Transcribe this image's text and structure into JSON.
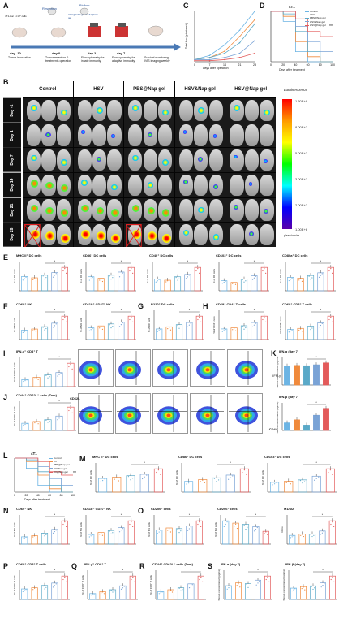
{
  "colors": {
    "control": "#6cb4e4",
    "hsv": "#f08a3c",
    "nap": "#5aa9c8",
    "hsvnap": "#e35b5b",
    "vsv": "#7aa3d6",
    "red": "#d62728",
    "blue": "#1f77b4",
    "orange": "#ff7f0e",
    "green": "#2ca02c",
    "purple": "#9467bd"
  },
  "panels": {
    "A": {
      "letter": "A",
      "steps": [
        {
          "day": "day -10",
          "desc": "Tumor inoculation"
        },
        {
          "day": "day 0",
          "desc": "Tumor resection & treatments operation"
        },
        {
          "day": "day 2",
          "desc": "Flow cytometry for innate immunity"
        },
        {
          "day": "day 7",
          "desc": "Flow cytometry for adaptive immunity"
        },
        {
          "day": "",
          "desc": "Survival monitoring IVIS imaging weekly"
        }
      ],
      "top_labels": [
        "Resection",
        "Biofum"
      ],
      "cells_label": "4T1-Luc 1×10⁶ cells",
      "treat_label": "HSV@NAP gel or VV@Nap gel"
    },
    "C": {
      "letter": "C",
      "ylabel": "Total flux (photons/s)",
      "xlabel": "Days after operation"
    },
    "D": {
      "letter": "D",
      "title": "4T1",
      "ylabel": "Survival rate (%)",
      "xlabel": "Days after treatment",
      "sig": "**"
    },
    "B": {
      "letter": "B",
      "columns": [
        "Control",
        "HSV",
        "PBS@Nap gel",
        "HSV&Nap gel",
        "HSV@Nap gel"
      ],
      "rows": [
        "Day -1",
        "Day 1",
        "Day 7",
        "Day 14",
        "Day 21",
        "Day 28"
      ],
      "cbar_title": "Luminescence",
      "cbar_ticks": [
        "1.30E+8",
        "8.00E+7",
        "5.00E+7",
        "3.00E+7",
        "2.00E+7",
        "1.00E+6"
      ],
      "cbar_unit": "p/sec/cm²/sr"
    },
    "E": {
      "letter": "E",
      "titles": [
        "MHC II⁺ DC cells",
        "CD86⁺ DC cells",
        "CD40⁺ DC cells",
        "CD103⁺ DC cells",
        "CD80a⁺ DC cells"
      ],
      "ylabels": [
        "% of DC cells",
        "% of DC cells",
        "% of DC cells",
        "% of DC cells",
        "% of DC cells"
      ]
    },
    "F": {
      "letter": "F",
      "titles": [
        "CD69⁺ NK",
        "CD11b⁺ CD27⁺ NK"
      ],
      "ylabels": [
        "% of NK cells",
        "% of NK cells"
      ]
    },
    "G": {
      "letter": "G",
      "titles": [
        "B220⁺ DC cells"
      ],
      "ylabels": [
        "% of DC cells"
      ]
    },
    "H": {
      "letter": "H",
      "titles": [
        "CD69⁺ CD4⁺ T cells",
        "CD69⁺ CD8⁺ T cells"
      ],
      "ylabels": [
        "% of CD4⁺ cells",
        "% of CD8⁺ cells"
      ]
    },
    "I": {
      "letter": "I",
      "titles": [
        "IFN-γ⁺ CD8⁺ T"
      ],
      "ylabels": [
        "% of CD8⁺ T cells"
      ],
      "flow_label": "IFN-γ"
    },
    "J": {
      "letter": "J",
      "titles": [
        "CD44⁺ CD62L⁻ cells (Tem)"
      ],
      "ylabels": [
        "% of CD8⁺ T cells"
      ],
      "flow_x": "CD44",
      "flow_y": "CD62L"
    },
    "K": {
      "letter": "K",
      "titles": [
        "IFN-α (day 7)",
        "IFN-β (day 7)"
      ],
      "ylabels": [
        "Serum concentration (pg/mL)",
        "Serum concentration (pg/mL)"
      ]
    },
    "L": {
      "letter": "L",
      "title": "4T1",
      "ylabel": "Survival rate (%)",
      "xlabel": "Days after treatment",
      "sig": "**"
    },
    "M": {
      "letter": "M",
      "titles": [
        "MHC II⁺ DC cells",
        "CD86⁺ DC cells",
        "CD103⁺ DC cells"
      ],
      "ylabels": [
        "% of DC cells",
        "% of DC cells",
        "% of DC cells"
      ]
    },
    "N": {
      "letter": "N",
      "titles": [
        "CD69⁺ NK",
        "CD11b⁺ CD27⁺ NK"
      ],
      "ylabels": [
        "% of NK cells",
        "% of NK cells"
      ]
    },
    "O": {
      "letter": "O",
      "titles": [
        "CD206⁺ cells",
        "CD206⁺ cells",
        "M1/M2"
      ],
      "ylabels": [
        "% of M1 cells",
        "% of M2 cells",
        "Ratio"
      ]
    },
    "P": {
      "letter": "P",
      "titles": [
        "CD69⁺ CD8⁺ T cells"
      ],
      "ylabels": [
        "% of CD8⁺ T cells"
      ]
    },
    "Q": {
      "letter": "Q",
      "titles": [
        "IFN-γ⁺ CD8⁺ T"
      ],
      "ylabels": [
        "% of CD8⁺ T cells"
      ]
    },
    "R": {
      "letter": "R",
      "titles": [
        "CD44⁺ CD62L⁻ cells (Tem)"
      ],
      "ylabels": [
        "% of CD8⁺ T cells"
      ]
    },
    "S": {
      "letter": "S",
      "titles": [
        "IFN-α (day 7)",
        "IFN-β (day 7)"
      ],
      "ylabels": [
        "Serum concentration (pg/mL)",
        "Serum concentration (pg/mL)"
      ]
    }
  },
  "legend_D": [
    "Control",
    "HSV",
    "PBS@Nap gel",
    "HSV&Nap gel",
    "HSV@Nap gel"
  ],
  "legend_L": [
    "Control",
    "VV",
    "PBS@Nap gel",
    "VV&Nap gel",
    "VV@Nap gel"
  ],
  "chart_data": [
    {
      "type": "line",
      "panel": "C",
      "x": [
        0,
        7,
        14,
        21,
        28
      ],
      "series": [
        {
          "values": [
            0.1,
            0.3,
            0.8,
            1.5,
            2.4
          ]
        },
        {
          "values": [
            0.1,
            0.2,
            0.5,
            1.2,
            2.0
          ]
        },
        {
          "values": [
            0.1,
            0.2,
            0.4,
            0.9,
            1.8
          ]
        },
        {
          "values": [
            0.1,
            0.1,
            0.2,
            0.4,
            1.0
          ]
        },
        {
          "values": [
            0.05,
            0.05,
            0.1,
            0.2,
            0.4
          ]
        }
      ]
    },
    {
      "type": "line",
      "panel": "D",
      "x": [
        0,
        20,
        40,
        60,
        80,
        100
      ],
      "series": [
        {
          "values": [
            100,
            80,
            20,
            0,
            0,
            0
          ]
        },
        {
          "values": [
            100,
            90,
            40,
            10,
            0,
            0
          ]
        },
        {
          "values": [
            100,
            95,
            60,
            20,
            0,
            0
          ]
        },
        {
          "values": [
            100,
            100,
            70,
            40,
            20,
            20
          ]
        },
        {
          "values": [
            100,
            100,
            85,
            60,
            50,
            50
          ]
        }
      ]
    },
    {
      "type": "line",
      "panel": "L",
      "x": [
        0,
        20,
        40,
        60,
        80,
        100
      ],
      "series": [
        {
          "values": [
            100,
            70,
            20,
            0,
            0,
            0
          ]
        },
        {
          "values": [
            100,
            90,
            50,
            10,
            0,
            0
          ]
        },
        {
          "values": [
            100,
            95,
            60,
            20,
            0,
            0
          ]
        },
        {
          "values": [
            100,
            100,
            75,
            40,
            20,
            20
          ]
        },
        {
          "values": [
            100,
            100,
            90,
            60,
            50,
            50
          ]
        }
      ]
    },
    {
      "type": "bar",
      "panel": "E",
      "groups": [
        [
          22,
          20,
          24,
          28,
          36
        ],
        [
          18,
          16,
          20,
          24,
          30
        ],
        [
          10,
          9,
          12,
          14,
          20
        ],
        [
          6,
          5,
          7,
          9,
          14
        ],
        [
          15,
          14,
          17,
          20,
          26
        ]
      ]
    },
    {
      "type": "bar",
      "panel": "F",
      "groups": [
        [
          8,
          9,
          11,
          14,
          20
        ],
        [
          12,
          14,
          16,
          18,
          24
        ]
      ]
    },
    {
      "type": "bar",
      "panel": "G",
      "groups": [
        [
          5,
          6,
          7,
          8,
          11
        ]
      ]
    },
    {
      "type": "bar",
      "panel": "H",
      "groups": [
        [
          10,
          11,
          13,
          16,
          22
        ],
        [
          9,
          10,
          12,
          15,
          21
        ]
      ]
    },
    {
      "type": "bar",
      "panel": "I",
      "groups": [
        [
          3,
          4,
          5,
          6,
          10
        ]
      ]
    },
    {
      "type": "bar",
      "panel": "J",
      "groups": [
        [
          4,
          5,
          6,
          8,
          13
        ]
      ]
    },
    {
      "type": "bar",
      "panel": "K",
      "groups": [
        [
          60,
          62,
          61,
          64,
          70
        ],
        [
          20,
          28,
          14,
          40,
          58
        ]
      ]
    },
    {
      "type": "bar",
      "panel": "M",
      "groups": [
        [
          20,
          22,
          24,
          26,
          34
        ],
        [
          12,
          14,
          16,
          19,
          26
        ],
        [
          8,
          9,
          10,
          13,
          19
        ]
      ]
    },
    {
      "type": "bar",
      "panel": "N",
      "groups": [
        [
          6,
          7,
          9,
          12,
          19
        ],
        [
          10,
          12,
          14,
          17,
          24
        ]
      ]
    },
    {
      "type": "bar",
      "panel": "O",
      "groups": [
        [
          22,
          25,
          24,
          28,
          36
        ],
        [
          40,
          36,
          34,
          30,
          22
        ],
        [
          0.6,
          0.7,
          0.7,
          0.9,
          1.6
        ]
      ]
    },
    {
      "type": "bar",
      "panel": "P",
      "groups": [
        [
          9,
          10,
          12,
          14,
          20
        ]
      ]
    },
    {
      "type": "bar",
      "panel": "Q",
      "groups": [
        [
          3,
          4,
          5,
          7,
          12
        ]
      ]
    },
    {
      "type": "bar",
      "panel": "R",
      "groups": [
        [
          4,
          5,
          6,
          8,
          12
        ]
      ]
    },
    {
      "type": "bar",
      "panel": "S",
      "groups": [
        [
          40,
          48,
          46,
          56,
          68
        ],
        [
          30,
          34,
          36,
          44,
          62
        ]
      ]
    }
  ]
}
